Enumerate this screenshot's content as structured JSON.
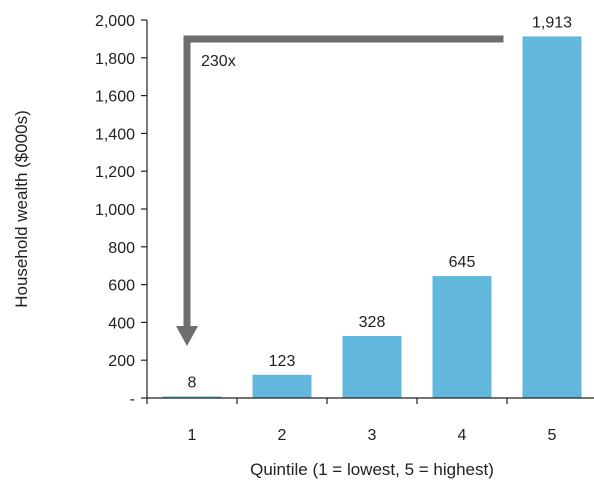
{
  "chart_data": {
    "type": "bar",
    "categories": [
      "1",
      "2",
      "3",
      "4",
      "5"
    ],
    "values": [
      8,
      123,
      328,
      645,
      1913
    ],
    "data_labels": [
      "8",
      "123",
      "328",
      "645",
      "1,913"
    ],
    "xlabel": "Quintile (1 = lowest, 5 = highest)",
    "ylabel": "Household wealth ($000s)",
    "ylim": [
      0,
      2000
    ],
    "yticks": [
      0,
      200,
      400,
      600,
      800,
      1000,
      1200,
      1400,
      1600,
      1800,
      2000
    ],
    "ytick_labels": [
      "-",
      "200",
      "400",
      "600",
      "800",
      "1,000",
      "1,200",
      "1,400",
      "1,600",
      "1,800",
      "2,000"
    ],
    "grid": false,
    "bar_color": "#62b8dc",
    "annotation": {
      "text": "230x",
      "arrow_color": "#6e6e6e",
      "from_category": "5",
      "to_category": "1"
    }
  }
}
